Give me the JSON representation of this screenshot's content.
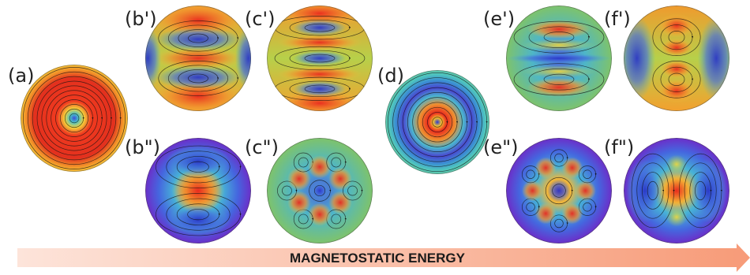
{
  "panels": [
    {
      "id": "a",
      "label": "(a)",
      "pattern": "vortex",
      "hue": "red"
    },
    {
      "id": "b1",
      "label": "(b')",
      "pattern": "two-lobe",
      "hue": "warm"
    },
    {
      "id": "c1",
      "label": "(c')",
      "pattern": "three-band",
      "hue": "warm"
    },
    {
      "id": "b2",
      "label": "(b\")",
      "pattern": "center-spot",
      "hue": "cool"
    },
    {
      "id": "c2",
      "label": "(c\")",
      "pattern": "hexagonal-lobes",
      "hue": "mixed"
    },
    {
      "id": "d",
      "label": "(d)",
      "pattern": "ring-vortex",
      "hue": "teal"
    },
    {
      "id": "e1",
      "label": "(e')",
      "pattern": "four-band",
      "hue": "mixed"
    },
    {
      "id": "f1",
      "label": "(f')",
      "pattern": "stacked-lobes",
      "hue": "warm"
    },
    {
      "id": "e2",
      "label": "(e\")",
      "pattern": "six-lobe-ring",
      "hue": "cool"
    },
    {
      "id": "f2",
      "label": "(f\")",
      "pattern": "center-column",
      "hue": "cool"
    }
  ],
  "arrow": {
    "label": "MAGNETOSTATIC ENERGY"
  }
}
